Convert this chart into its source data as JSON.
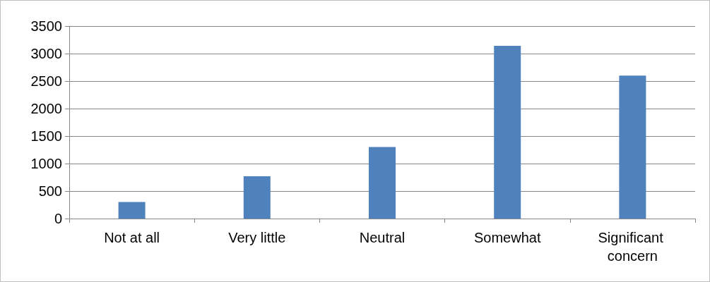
{
  "chart_data": {
    "type": "bar",
    "categories": [
      "Not at all",
      "Very little",
      "Neutral",
      "Somewhat",
      "Significant concern"
    ],
    "values": [
      300,
      770,
      1300,
      3140,
      2600
    ],
    "color": "#4f81bd",
    "ylim": [
      0,
      3500
    ],
    "yticks": [
      0,
      500,
      1000,
      1500,
      2000,
      2500,
      3000,
      3500
    ],
    "grid": "y"
  }
}
